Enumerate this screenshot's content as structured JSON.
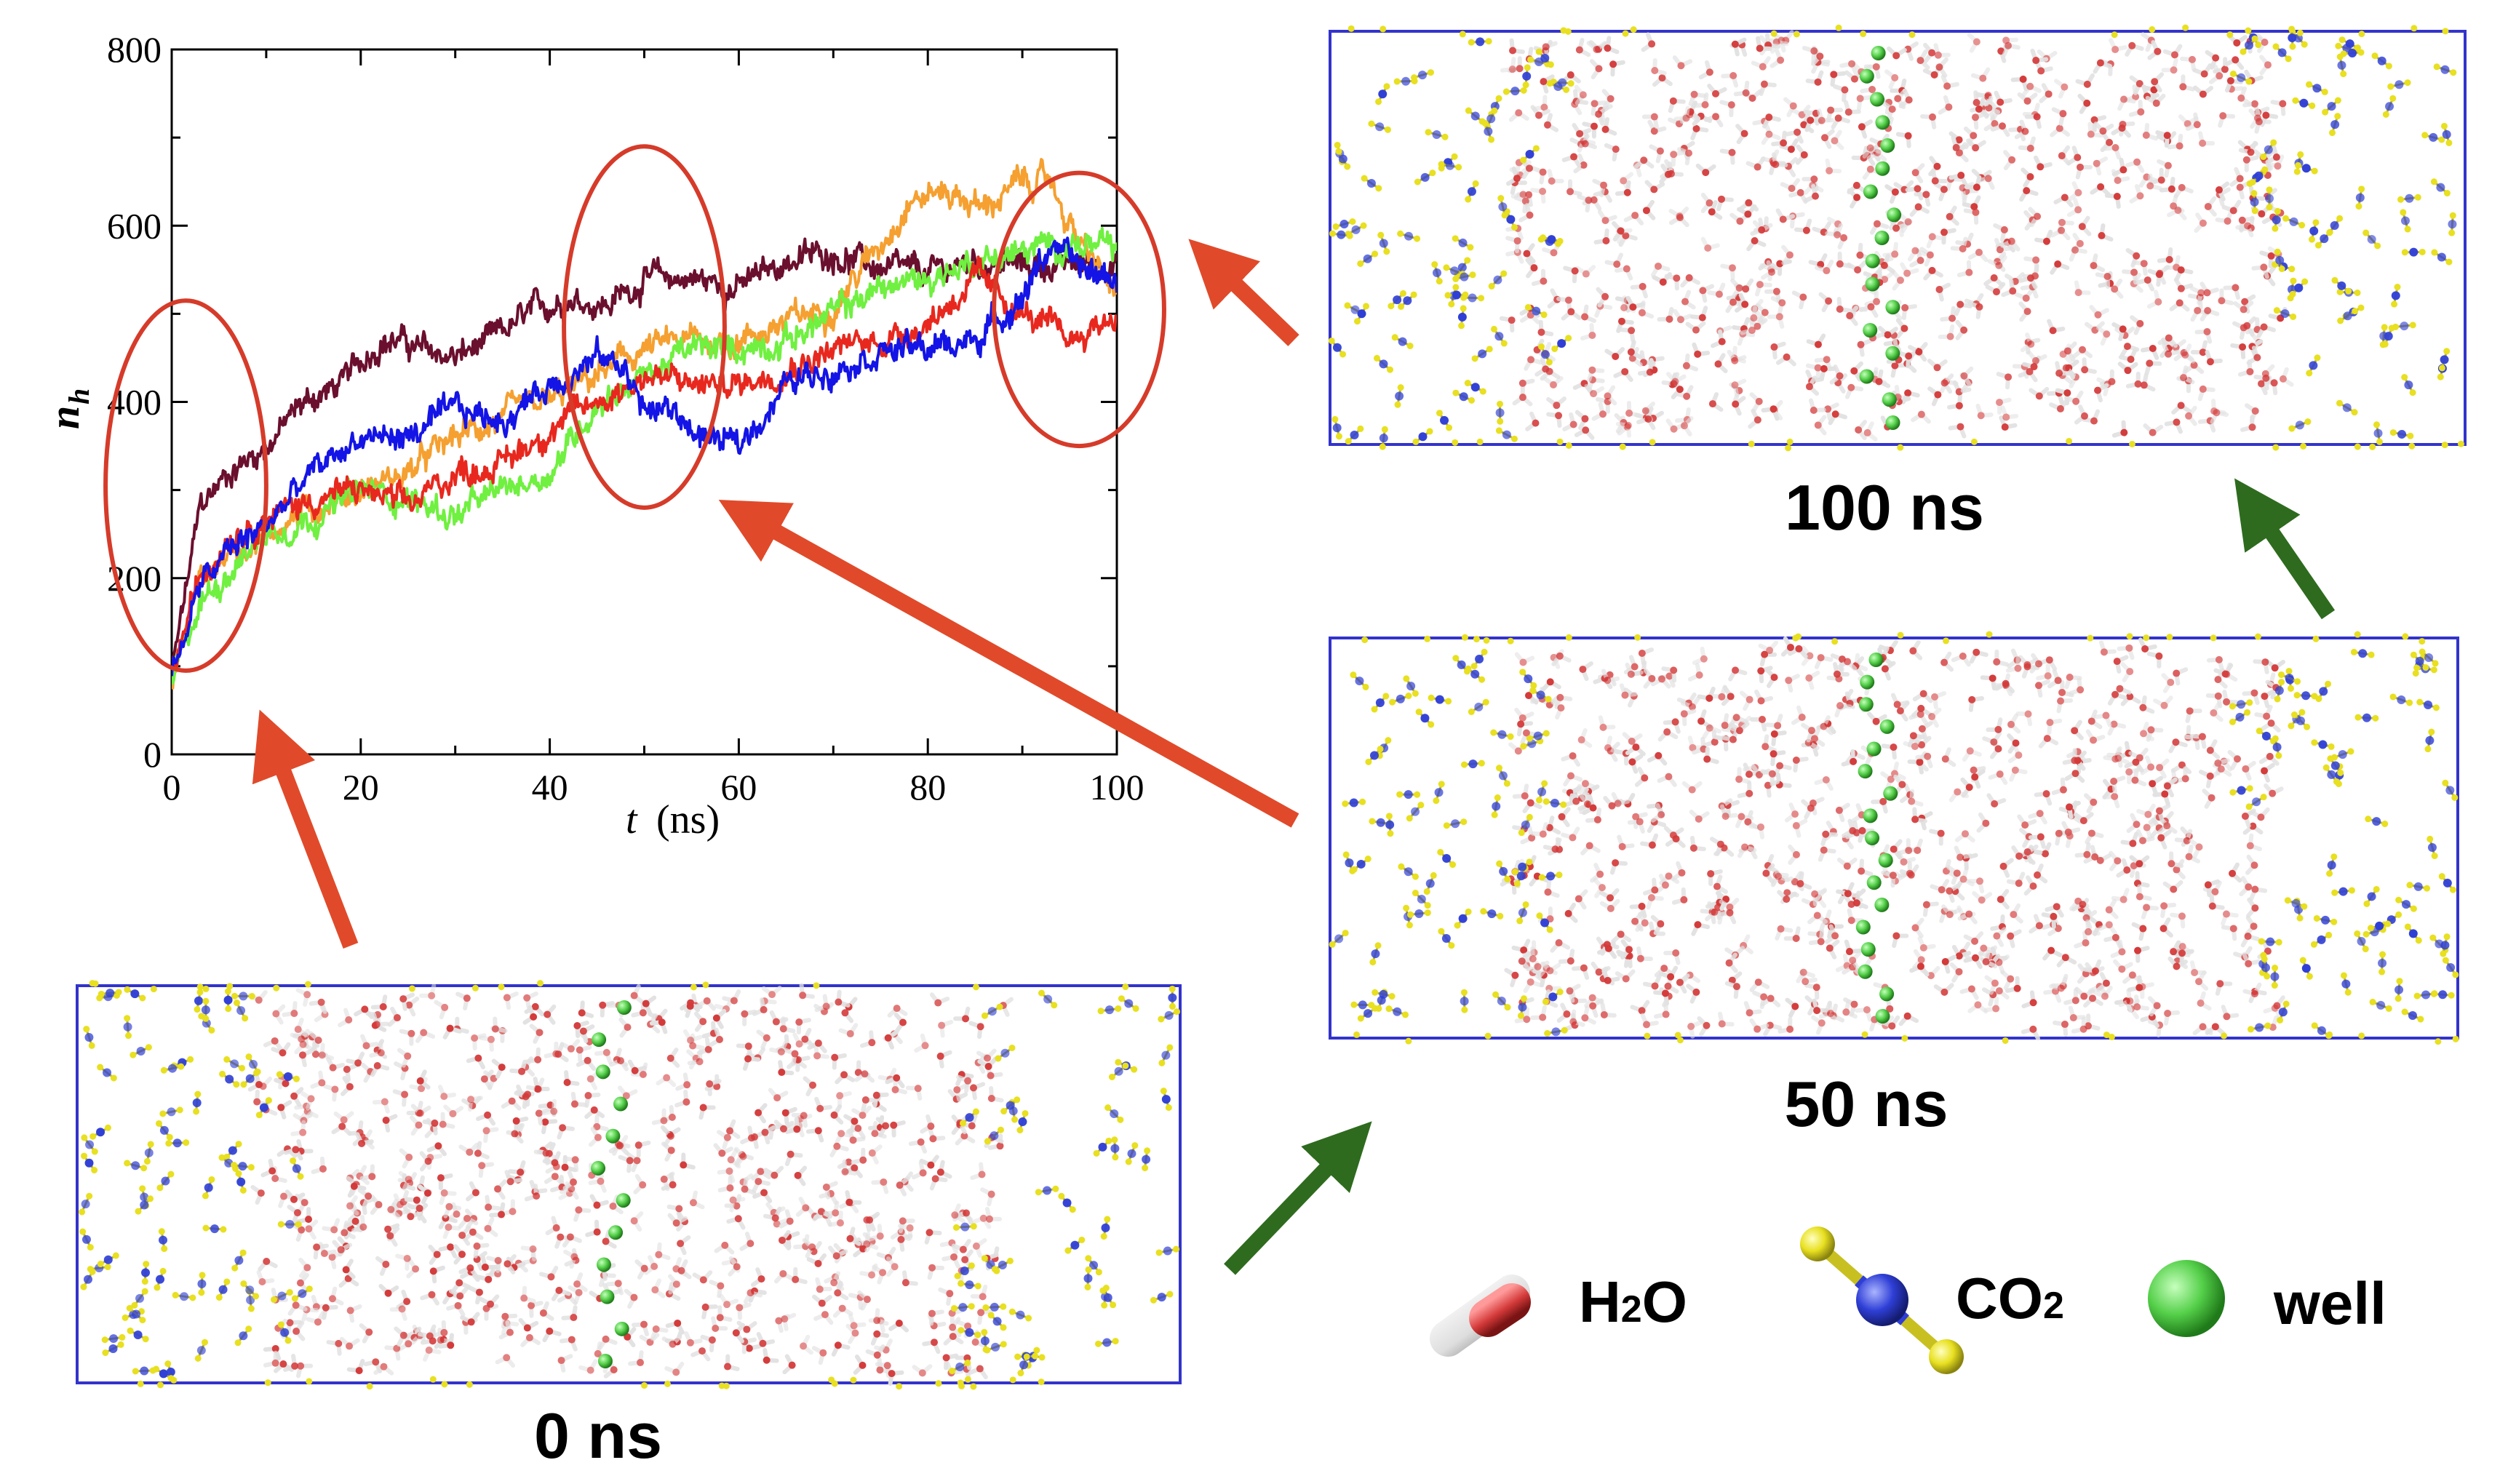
{
  "figure": {
    "panels": [
      {
        "label": "0 ns",
        "time_ns": 0,
        "well_count": 12
      },
      {
        "label": "50 ns",
        "time_ns": 50,
        "well_count": 17
      },
      {
        "label": "100 ns",
        "time_ns": 100,
        "well_count": 17
      }
    ],
    "legend": {
      "water": {
        "label": "H",
        "sub": "2",
        "tail": "O"
      },
      "co2": {
        "label": "CO",
        "sub": "2",
        "tail": ""
      },
      "well": {
        "label": "well"
      }
    },
    "colors": {
      "box_border": "#3333cc",
      "red_arrow": "#e04a2a",
      "green_arrow": "#2e6b1e",
      "highlight_ellipse": "#d63b2a",
      "oxygen": "#d43a3a",
      "hydrogen": "#e8e8e8",
      "carbon": "#2f3fd6",
      "co2_oxygen": "#e8e020",
      "well_atom": "#55d04a"
    }
  },
  "chart_data": {
    "type": "line",
    "title": "",
    "xlabel": "t",
    "xunit": "(ns)",
    "ylabel": "n",
    "ylabel_sub": "h",
    "xlim": [
      0,
      100
    ],
    "ylim": [
      0,
      800
    ],
    "xticks": [
      0,
      20,
      40,
      60,
      80,
      100
    ],
    "yticks": [
      0,
      200,
      400,
      600,
      800
    ],
    "highlight_regions_ns": [
      1.5,
      50,
      96
    ],
    "series": [
      {
        "name": "maroon",
        "color": "#6b0f2e",
        "x": [
          0,
          3,
          6,
          10,
          14,
          18,
          22,
          24,
          26,
          30,
          34,
          38,
          42,
          46,
          50,
          55,
          60,
          65,
          70,
          75,
          80,
          85,
          90,
          95,
          100
        ],
        "y": [
          90,
          280,
          320,
          350,
          400,
          420,
          470,
          470,
          460,
          450,
          470,
          500,
          520,
          510,
          540,
          540,
          530,
          560,
          570,
          550,
          545,
          560,
          555,
          555,
          560
        ]
      },
      {
        "name": "orange",
        "color": "#f5a030",
        "x": [
          0,
          3,
          6,
          10,
          15,
          20,
          25,
          30,
          35,
          40,
          45,
          50,
          55,
          60,
          65,
          70,
          75,
          78,
          82,
          86,
          90,
          93,
          96,
          100
        ],
        "y": [
          80,
          200,
          230,
          250,
          280,
          300,
          320,
          360,
          380,
          400,
          430,
          460,
          470,
          470,
          490,
          510,
          580,
          630,
          640,
          620,
          650,
          650,
          580,
          520
        ]
      },
      {
        "name": "green",
        "color": "#70f040",
        "x": [
          0,
          3,
          6,
          10,
          15,
          20,
          25,
          30,
          35,
          40,
          45,
          50,
          55,
          60,
          65,
          70,
          75,
          80,
          85,
          90,
          95,
          100
        ],
        "y": [
          80,
          170,
          210,
          250,
          270,
          300,
          290,
          270,
          300,
          320,
          400,
          430,
          460,
          460,
          470,
          500,
          530,
          540,
          560,
          570,
          580,
          570
        ]
      },
      {
        "name": "red",
        "color": "#e8281e",
        "x": [
          0,
          3,
          6,
          10,
          15,
          20,
          25,
          30,
          35,
          40,
          45,
          50,
          55,
          60,
          65,
          70,
          75,
          80,
          85,
          90,
          95,
          100
        ],
        "y": [
          90,
          200,
          250,
          270,
          290,
          300,
          280,
          320,
          330,
          370,
          400,
          430,
          420,
          420,
          440,
          460,
          470,
          490,
          540,
          500,
          470,
          500
        ]
      },
      {
        "name": "blue",
        "color": "#1414e6",
        "x": [
          0,
          3,
          6,
          10,
          15,
          20,
          25,
          30,
          35,
          40,
          45,
          48,
          50,
          53,
          56,
          60,
          65,
          70,
          75,
          80,
          85,
          90,
          93,
          96,
          100
        ],
        "y": [
          90,
          190,
          230,
          260,
          320,
          360,
          360,
          390,
          380,
          420,
          450,
          440,
          390,
          390,
          360,
          350,
          420,
          440,
          460,
          460,
          470,
          520,
          580,
          550,
          540
        ]
      }
    ]
  }
}
